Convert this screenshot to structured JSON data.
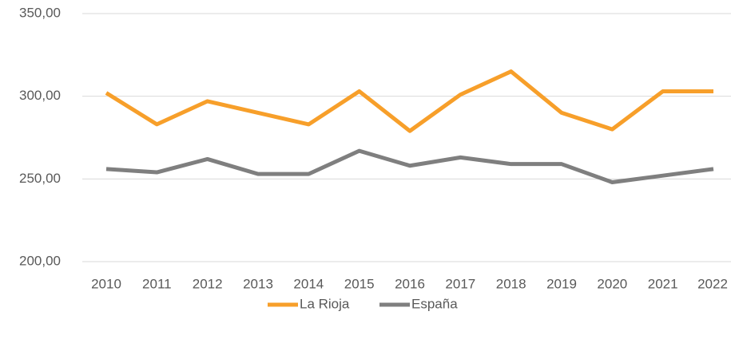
{
  "chart_data": {
    "type": "line",
    "categories": [
      "2010",
      "2011",
      "2012",
      "2013",
      "2014",
      "2015",
      "2016",
      "2017",
      "2018",
      "2019",
      "2020",
      "2021",
      "2022"
    ],
    "series": [
      {
        "name": "La Rioja",
        "color": "#f79f2a",
        "values": [
          302,
          283,
          297,
          290,
          283,
          303,
          279,
          301,
          315,
          290,
          280,
          303,
          303
        ]
      },
      {
        "name": "España",
        "color": "#7f7f7f",
        "values": [
          256,
          254,
          262,
          253,
          253,
          267,
          258,
          263,
          259,
          259,
          248,
          252,
          256
        ]
      }
    ],
    "ylim": [
      200,
      350
    ],
    "yticks": [
      {
        "value": 200,
        "label": "200,00"
      },
      {
        "value": 250,
        "label": "250,00"
      },
      {
        "value": 300,
        "label": "300,00"
      },
      {
        "value": 350,
        "label": "350,00"
      }
    ],
    "grid": true,
    "legend": "bottom"
  }
}
